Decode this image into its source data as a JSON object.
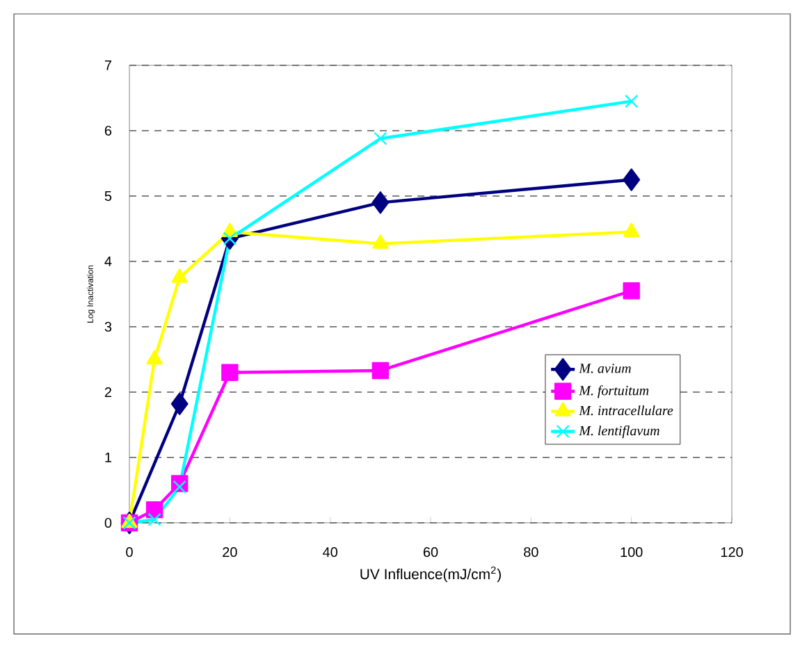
{
  "chart_data": {
    "type": "line",
    "xlabel": "UV Influence(mJ/cm$^{2}$)",
    "ylabel": "Log Inactivation",
    "x": [
      0,
      5,
      10,
      20,
      50,
      100
    ],
    "xlim": [
      0,
      120
    ],
    "xticks": [
      0,
      20,
      40,
      60,
      80,
      100,
      120
    ],
    "ylim": [
      0,
      7
    ],
    "yticks": [
      0,
      1,
      2,
      3,
      4,
      5,
      6,
      7
    ],
    "grid": "y",
    "legend": "right",
    "line_style": "solid",
    "series": [
      {
        "name": "M. avium",
        "color": "#000080",
        "marker": "diamond",
        "values": [
          0,
          null,
          1.82,
          4.35,
          4.9,
          5.25
        ]
      },
      {
        "name": "M. fortuitum",
        "color": "#ff00ff",
        "marker": "square",
        "values": [
          0,
          0.2,
          0.6,
          2.3,
          2.33,
          3.55
        ]
      },
      {
        "name": "M. intracellulare",
        "color": "#ffff00",
        "marker": "triangle",
        "values": [
          0,
          2.5,
          3.75,
          4.45,
          4.27,
          4.45
        ]
      },
      {
        "name": "M. lentiflavum",
        "color": "#00ffff",
        "marker": "cross",
        "values": [
          0,
          0.05,
          0.55,
          4.35,
          5.88,
          6.45
        ]
      }
    ]
  }
}
